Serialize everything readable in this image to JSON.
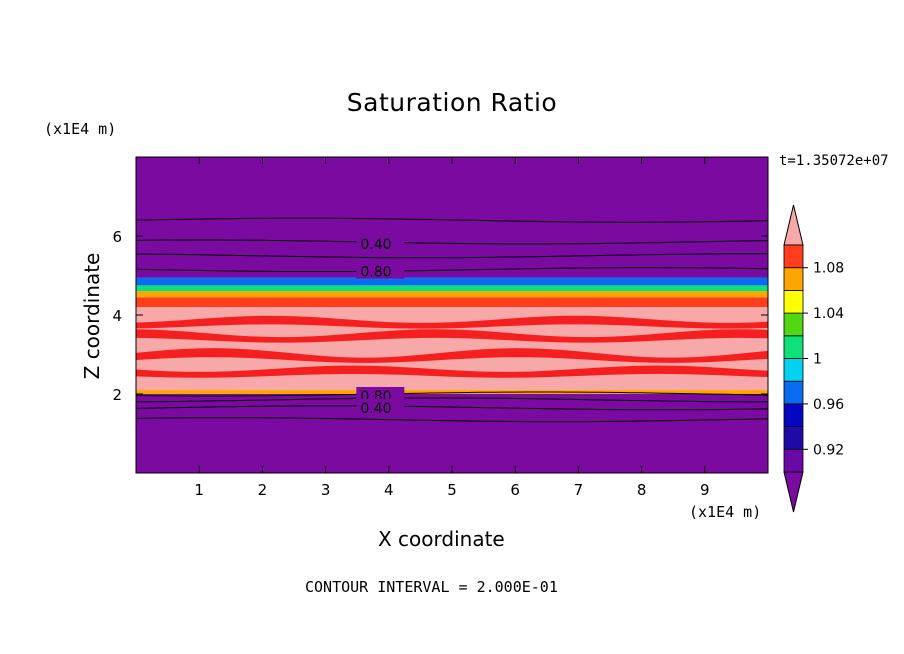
{
  "chart_data": {
    "type": "heatmap",
    "title": "Saturation Ratio",
    "xlabel": "X coordinate",
    "ylabel": "Z coordinate",
    "x_units": "(x1E4 m)",
    "y_units": "(x1E4 m)",
    "xlim": [
      0,
      10
    ],
    "ylim": [
      0,
      8
    ],
    "x_ticks": [
      "1",
      "2",
      "3",
      "4",
      "5",
      "6",
      "7",
      "8",
      "9"
    ],
    "y_ticks": [
      "2",
      "4",
      "6"
    ],
    "x_tick_values": [
      1,
      2,
      3,
      4,
      5,
      6,
      7,
      8,
      9
    ],
    "y_tick_values": [
      2,
      4,
      6
    ],
    "time_label": "t=1.35072e+07",
    "contour_interval_text": "CONTOUR INTERVAL = 2.000E-01",
    "contour_labels": [
      {
        "text": "0.40",
        "x": 3.55,
        "z": 5.8
      },
      {
        "text": "0.80",
        "x": 3.55,
        "z": 5.1
      },
      {
        "text": "0.80",
        "x": 3.55,
        "z": 1.95
      },
      {
        "text": "0.40",
        "x": 3.55,
        "z": 1.65
      }
    ],
    "contour_lines_z": [
      6.4,
      5.85,
      5.5,
      5.15,
      2.0,
      1.85,
      1.65,
      1.35
    ],
    "colorbar": {
      "tick_labels": [
        "1.08",
        "1.04",
        "1",
        "0.96",
        "0.92"
      ],
      "tick_values": [
        1.08,
        1.04,
        1.0,
        0.96,
        0.92
      ],
      "levels": [
        0.9,
        0.92,
        0.94,
        0.96,
        0.98,
        1.0,
        1.02,
        1.04,
        1.06,
        1.08,
        1.1
      ],
      "colors": [
        "#6a0aa6",
        "#1f0aa8",
        "#0505c2",
        "#0a6cf0",
        "#00d2f0",
        "#10e07a",
        "#52d810",
        "#ffff00",
        "#ffa500",
        "#ff3e1e",
        "#f51010"
      ],
      "under_color": "#7a0aa0",
      "over_color": "#f7a8a8"
    },
    "field_bands": [
      {
        "z_from": 0.0,
        "z_to": 2.0,
        "value": 0.4,
        "color": "#7a0aa0"
      },
      {
        "z_from": 2.0,
        "z_to": 2.1,
        "value": 1.05,
        "color": "#ffa500"
      },
      {
        "z_from": 2.1,
        "z_to": 4.2,
        "value": 1.12,
        "color": "#f7a8a8"
      },
      {
        "z_from": 4.2,
        "z_to": 4.45,
        "value": 1.09,
        "color": "#ff3e1e"
      },
      {
        "z_from": 4.45,
        "z_to": 4.6,
        "value": 1.05,
        "color": "#ffa500"
      },
      {
        "z_from": 4.6,
        "z_to": 4.75,
        "value": 0.99,
        "color": "#10e07a"
      },
      {
        "z_from": 4.75,
        "z_to": 4.95,
        "value": 0.95,
        "color": "#0a6cf0"
      },
      {
        "z_from": 4.95,
        "z_to": 8.0,
        "value": 0.4,
        "color": "#7a0aa0"
      }
    ],
    "colors": {
      "background": "#ffffff",
      "field_low": "#7a0aa0",
      "field_high": "#f7a8a8",
      "streak": "#f51010",
      "contour": "#000000"
    }
  }
}
